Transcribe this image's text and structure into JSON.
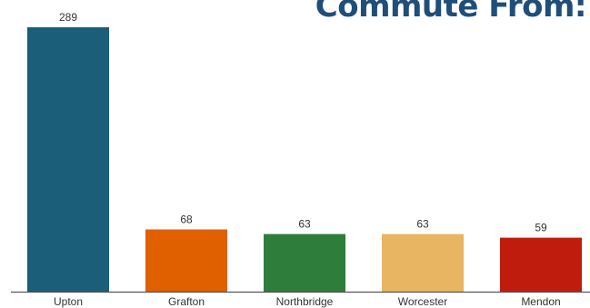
{
  "chart_data": {
    "type": "bar",
    "title": "Commute From:",
    "categories": [
      "Upton",
      "Grafton",
      "Northbridge",
      "Worcester",
      "Mendon"
    ],
    "values": [
      289,
      68,
      63,
      63,
      59
    ],
    "colors": [
      "#1a5e7a",
      "#e06000",
      "#2e7d3a",
      "#e8b562",
      "#c01c0e"
    ],
    "xlabel": "",
    "ylabel": "",
    "ylim": [
      0,
      289
    ],
    "grid": false,
    "legend": "none"
  }
}
